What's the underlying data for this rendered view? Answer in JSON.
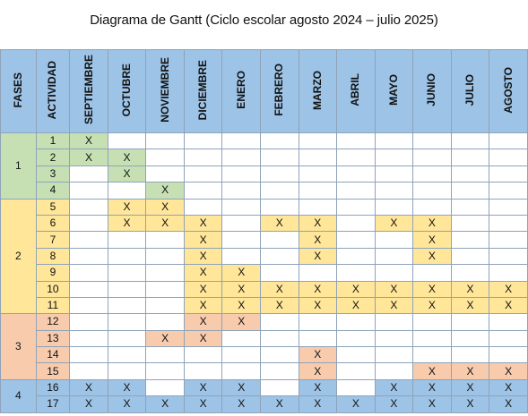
{
  "title": "Diagrama de Gantt (Ciclo escolar agosto 2024 – julio 2025)",
  "headers": {
    "phase": "FASES",
    "activity": "ACTIVIDAD",
    "months": [
      "SEPTIEMBRE",
      "OCTUBRE",
      "NOVIEMBRE",
      "DICIEMBRE",
      "ENERO",
      "FEBRERO",
      "MARZO",
      "ABRIL",
      "MAYO",
      "JUNIO",
      "JULIO",
      "AGOSTO"
    ]
  },
  "mark_symbol": "X",
  "colors": {
    "header": "#9dc3e6",
    "phase_1": "#c6e0b4",
    "phase_2": "#ffe699",
    "phase_3": "#f8cbad",
    "phase_4": "#9dc3e6",
    "grid": "#8fa3b8"
  },
  "phases": [
    {
      "label": "1",
      "color_key": "phase_1",
      "activities": [
        "1",
        "2",
        "3",
        "4"
      ]
    },
    {
      "label": "2",
      "color_key": "phase_2",
      "activities": [
        "5",
        "6",
        "7",
        "8",
        "9",
        "10",
        "11"
      ]
    },
    {
      "label": "3",
      "color_key": "phase_3",
      "activities": [
        "12",
        "13",
        "14",
        "15"
      ]
    },
    {
      "label": "4",
      "color_key": "phase_4",
      "activities": [
        "16",
        "17"
      ]
    }
  ],
  "rows": [
    {
      "activity": "1",
      "phase": 1,
      "marks": [
        1,
        0,
        0,
        0,
        0,
        0,
        0,
        0,
        0,
        0,
        0,
        0
      ]
    },
    {
      "activity": "2",
      "phase": 1,
      "marks": [
        1,
        1,
        0,
        0,
        0,
        0,
        0,
        0,
        0,
        0,
        0,
        0
      ]
    },
    {
      "activity": "3",
      "phase": 1,
      "marks": [
        0,
        1,
        0,
        0,
        0,
        0,
        0,
        0,
        0,
        0,
        0,
        0
      ]
    },
    {
      "activity": "4",
      "phase": 1,
      "marks": [
        0,
        0,
        1,
        0,
        0,
        0,
        0,
        0,
        0,
        0,
        0,
        0
      ]
    },
    {
      "activity": "5",
      "phase": 2,
      "marks": [
        0,
        1,
        1,
        0,
        0,
        0,
        0,
        0,
        0,
        0,
        0,
        0
      ]
    },
    {
      "activity": "6",
      "phase": 2,
      "marks": [
        0,
        1,
        1,
        1,
        0,
        1,
        1,
        0,
        1,
        1,
        0,
        0
      ]
    },
    {
      "activity": "7",
      "phase": 2,
      "marks": [
        0,
        0,
        0,
        1,
        0,
        0,
        1,
        0,
        0,
        1,
        0,
        0
      ]
    },
    {
      "activity": "8",
      "phase": 2,
      "marks": [
        0,
        0,
        0,
        1,
        0,
        0,
        1,
        0,
        0,
        1,
        0,
        0
      ]
    },
    {
      "activity": "9",
      "phase": 2,
      "marks": [
        0,
        0,
        0,
        1,
        1,
        0,
        0,
        0,
        0,
        0,
        0,
        0
      ]
    },
    {
      "activity": "10",
      "phase": 2,
      "marks": [
        0,
        0,
        0,
        1,
        1,
        1,
        1,
        1,
        1,
        1,
        1,
        1
      ]
    },
    {
      "activity": "11",
      "phase": 2,
      "marks": [
        0,
        0,
        0,
        1,
        1,
        1,
        1,
        1,
        1,
        1,
        1,
        1
      ]
    },
    {
      "activity": "12",
      "phase": 3,
      "marks": [
        0,
        0,
        0,
        1,
        1,
        0,
        0,
        0,
        0,
        0,
        0,
        0
      ]
    },
    {
      "activity": "13",
      "phase": 3,
      "marks": [
        0,
        0,
        1,
        1,
        0,
        0,
        0,
        0,
        0,
        0,
        0,
        0
      ]
    },
    {
      "activity": "14",
      "phase": 3,
      "marks": [
        0,
        0,
        0,
        0,
        0,
        0,
        1,
        0,
        0,
        0,
        0,
        0
      ]
    },
    {
      "activity": "15",
      "phase": 3,
      "marks": [
        0,
        0,
        0,
        0,
        0,
        0,
        1,
        0,
        0,
        1,
        1,
        1
      ]
    },
    {
      "activity": "16",
      "phase": 4,
      "marks": [
        1,
        1,
        0,
        1,
        1,
        0,
        1,
        0,
        1,
        1,
        1,
        1
      ]
    },
    {
      "activity": "17",
      "phase": 4,
      "marks": [
        1,
        1,
        1,
        1,
        1,
        1,
        1,
        1,
        1,
        1,
        1,
        1
      ]
    }
  ]
}
